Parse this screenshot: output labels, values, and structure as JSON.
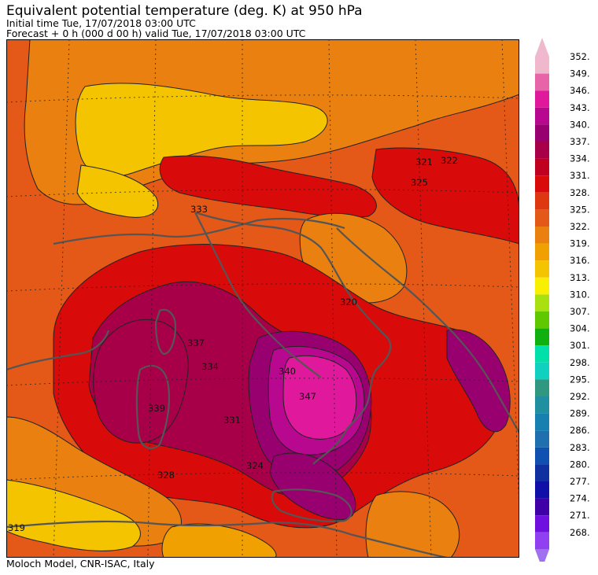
{
  "header": {
    "title": "Equivalent potential temperature (deg. K) at 950 hPa",
    "initial_time": "Initial time  Tue, 17/07/2018  03:00 UTC",
    "forecast": "Forecast +   0 h  (000 d 00 h)  valid Tue, 17/07/2018 03:00 UTC"
  },
  "footer": {
    "credit": "Moloch Model, CNR-ISAC, Italy"
  },
  "colorbar": {
    "levels": [
      {
        "label": "352.",
        "color": "#f0b8cc"
      },
      {
        "label": "349.",
        "color": "#e864a8"
      },
      {
        "label": "346.",
        "color": "#e0189c"
      },
      {
        "label": "343.",
        "color": "#b80890"
      },
      {
        "label": "340.",
        "color": "#980070"
      },
      {
        "label": "337.",
        "color": "#a80048"
      },
      {
        "label": "334.",
        "color": "#c00020"
      },
      {
        "label": "331.",
        "color": "#d80a0a"
      },
      {
        "label": "328.",
        "color": "#de3810"
      },
      {
        "label": "325.",
        "color": "#e45818"
      },
      {
        "label": "322.",
        "color": "#ea8010"
      },
      {
        "label": "319.",
        "color": "#f0a000"
      },
      {
        "label": "316.",
        "color": "#f4c400"
      },
      {
        "label": "313.",
        "color": "#f8f000"
      },
      {
        "label": "310.",
        "color": "#a8e010"
      },
      {
        "label": "307.",
        "color": "#60c800"
      },
      {
        "label": "304.",
        "color": "#10b010"
      },
      {
        "label": "301.",
        "color": "#00e0a8"
      },
      {
        "label": "298.",
        "color": "#10d0c0"
      },
      {
        "label": "295.",
        "color": "#309880"
      },
      {
        "label": "292.",
        "color": "#2090a0"
      },
      {
        "label": "289.",
        "color": "#1880b0"
      },
      {
        "label": "286.",
        "color": "#2070b0"
      },
      {
        "label": "283.",
        "color": "#1050b0"
      },
      {
        "label": "280.",
        "color": "#1030a0"
      },
      {
        "label": "277.",
        "color": "#1010a8"
      },
      {
        "label": "274.",
        "color": "#4000a8"
      },
      {
        "label": "271.",
        "color": "#7010e0"
      },
      {
        "label": "268.",
        "color": "#9040f0"
      }
    ],
    "below_color": "#a070f0"
  },
  "map": {
    "background_color": "#e45818",
    "contour_labels": [
      "347",
      "340",
      "337",
      "334",
      "331",
      "328",
      "325",
      "322",
      "320",
      "321",
      "319",
      "333",
      "339",
      "324"
    ]
  }
}
